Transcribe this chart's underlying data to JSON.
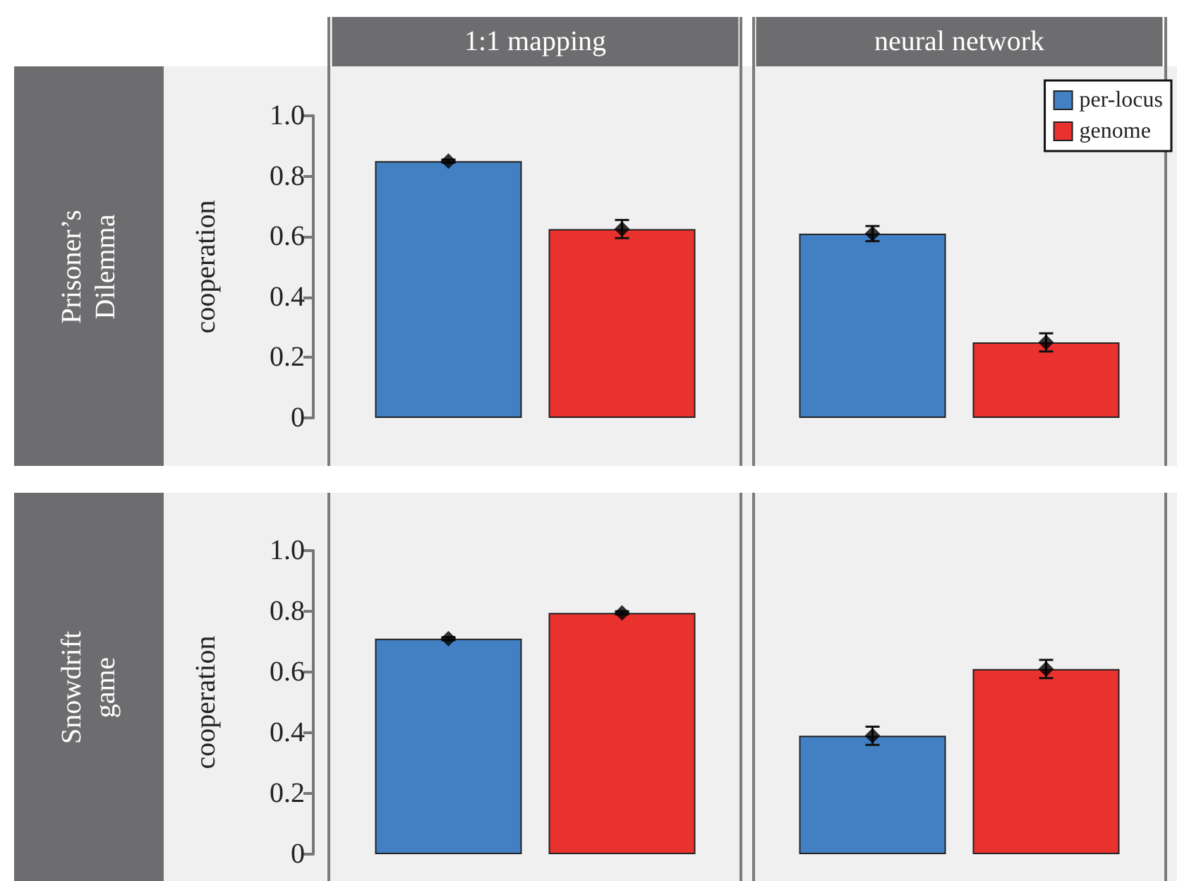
{
  "chart_data": [
    {
      "type": "bar",
      "title": "Prisoner’s Dilemma",
      "ylabel": "cooperation",
      "categories": [
        "1:1 mapping",
        "neural network"
      ],
      "series": [
        {
          "name": "per-locus",
          "color": "#4380c3",
          "values": [
            0.85,
            0.61
          ]
        },
        {
          "name": "genome",
          "color": "#e9312e",
          "values": [
            0.625,
            0.25
          ]
        },
        {
          "type": "scatter",
          "color": "#000000",
          "x": [
            "1:1 mapping",
            "neural network"
          ],
          "values": [
            0.85,
            0.61
          ],
          "errors": [
            0.005,
            0.025
          ]
        },
        {
          "type": "scatter",
          "color": "#000000",
          "x": [
            "1:1 mapping",
            "neural network"
          ],
          "values": [
            0.625,
            0.25
          ],
          "errors": [
            0.03,
            0.03
          ]
        }
      ],
      "ylim": [
        0,
        1.0
      ],
      "yticks": [
        0,
        0.2,
        0.4,
        0.6,
        0.8,
        {
          "value": 1.0,
          "label": "1.0"
        }
      ],
      "marker": "diamond",
      "legend": "top right",
      "grid": false
    },
    {
      "type": "bar",
      "title": "Snowdrift game",
      "ylabel": "cooperation",
      "categories": [
        "1:1 mapping",
        "neural network"
      ],
      "series": [
        {
          "color": "#4380c3",
          "values": [
            0.71,
            0.39
          ]
        },
        {
          "color": "#e9312e",
          "values": [
            0.795,
            0.61
          ]
        },
        {
          "type": "scatter",
          "color": "#000000",
          "x": [
            "1:1 mapping",
            "neural network"
          ],
          "values": [
            0.71,
            0.39
          ],
          "errors": [
            0.005,
            0.03
          ]
        },
        {
          "type": "scatter",
          "color": "#000000",
          "x": [
            "1:1 mapping",
            "neural network"
          ],
          "values": [
            0.795,
            0.61
          ],
          "errors": [
            0.005,
            0.03
          ]
        }
      ],
      "ylim": [
        0,
        1.0
      ],
      "yticks": [
        0,
        0.2,
        0.4,
        0.6,
        0.8,
        {
          "value": 1.0,
          "label": "1.0"
        }
      ],
      "tick_labels": "y",
      "marker": "diamond",
      "legend": false,
      "grid": false
    }
  ]
}
